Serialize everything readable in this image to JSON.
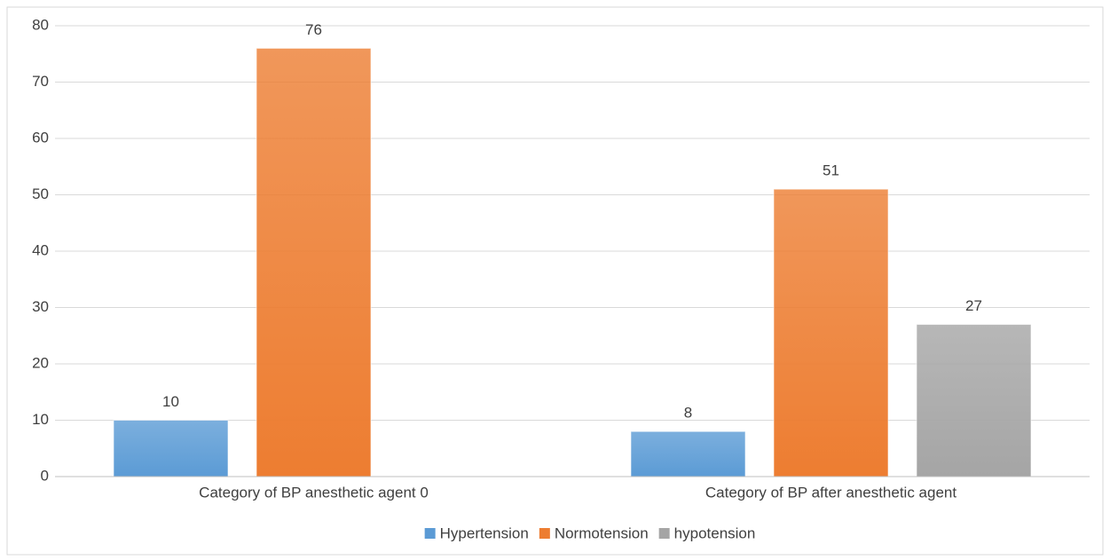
{
  "chart_data": {
    "type": "bar",
    "categories": [
      "Category of BP anesthetic agent 0",
      "Category of BP after anesthetic agent"
    ],
    "series": [
      {
        "name": "Hypertension",
        "color": "#5b9bd5",
        "values": [
          10,
          8
        ]
      },
      {
        "name": "Normotension",
        "color": "#ed7d31",
        "values": [
          76,
          51
        ]
      },
      {
        "name": "hypotension",
        "color": "#a5a5a5",
        "values": [
          null,
          27
        ]
      }
    ],
    "ylim": [
      0,
      80
    ],
    "yticks": [
      0,
      10,
      20,
      30,
      40,
      50,
      60,
      70,
      80
    ],
    "grid": true,
    "legend": "bottom"
  }
}
